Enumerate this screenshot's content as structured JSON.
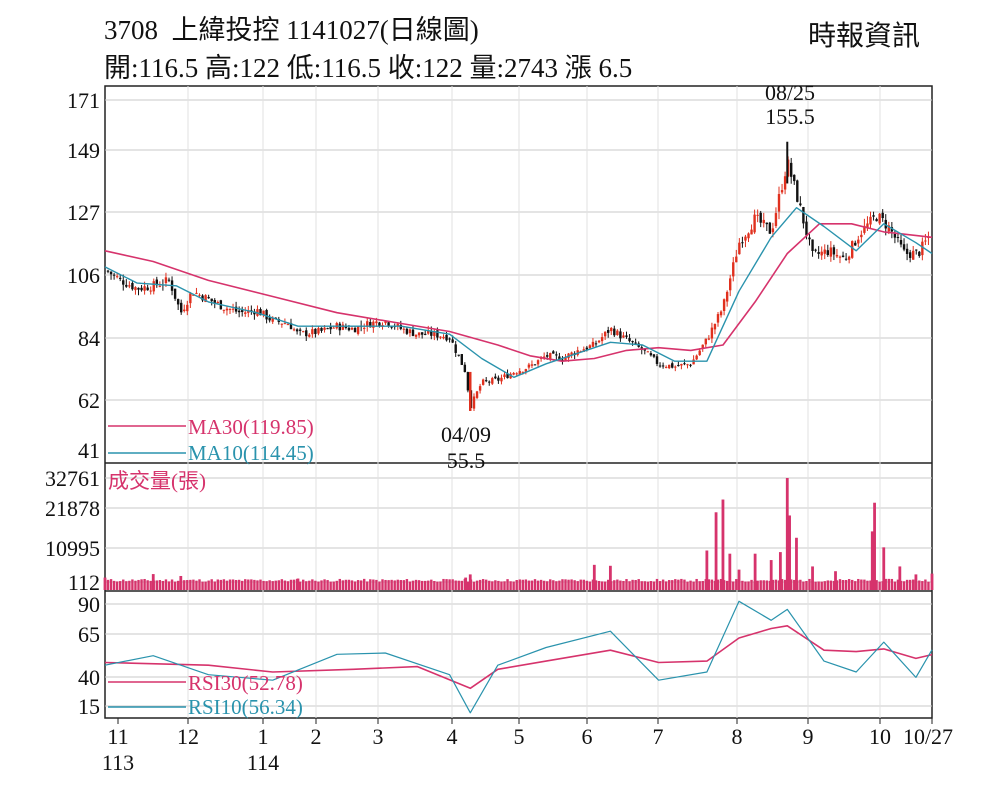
{
  "header": {
    "symbol": "3708",
    "name": "上緯投控",
    "date_title": "1141027(日線圖)",
    "source": "時報資訊",
    "quote": "開:116.5 高:122 低:116.5 收:122 量:2743 漲 6.5"
  },
  "colors": {
    "ma30": "#d6336c",
    "ma10": "#2a93ad",
    "up_candle": "#e0301e",
    "down_candle": "#111111",
    "volume": "#d6336c",
    "rsi30": "#d6336c",
    "rsi10": "#2a93ad",
    "grid": "#c8c8c8"
  },
  "chart_data": [
    {
      "type": "candlestick",
      "panel": "price",
      "ylim": [
        41,
        171
      ],
      "y_ticks": [
        "171",
        "149",
        "127",
        "106",
        "84",
        "62",
        "41"
      ],
      "x_ticks": [
        {
          "label": "11",
          "sub": "113"
        },
        {
          "label": "12"
        },
        {
          "label": "1",
          "sub": "114"
        },
        {
          "label": "2"
        },
        {
          "label": "3"
        },
        {
          "label": "4"
        },
        {
          "label": "5"
        },
        {
          "label": "6"
        },
        {
          "label": "7"
        },
        {
          "label": "8"
        },
        {
          "label": "9"
        },
        {
          "label": "10"
        },
        {
          "label": "10/27"
        }
      ],
      "legend": [
        {
          "name": "MA30(119.85)",
          "color": "#d6336c"
        },
        {
          "name": "MA10(114.45)",
          "color": "#2a93ad"
        }
      ],
      "annotations": [
        {
          "date": "08/25",
          "value": "155.5",
          "kind": "high"
        },
        {
          "date": "04/09",
          "value": "55.5",
          "kind": "low"
        }
      ],
      "close_path": [
        [
          "2024-11-01",
          108
        ],
        [
          "2024-11-08",
          104
        ],
        [
          "2024-11-15",
          101
        ],
        [
          "2024-11-22",
          102
        ],
        [
          "2024-11-29",
          104
        ],
        [
          "2024-12-04",
          92
        ],
        [
          "2024-12-09",
          100
        ],
        [
          "2024-12-16",
          97
        ],
        [
          "2024-12-23",
          94
        ],
        [
          "2024-12-30",
          92
        ],
        [
          "2025-01-06",
          93
        ],
        [
          "2025-01-13",
          89
        ],
        [
          "2025-01-20",
          88
        ],
        [
          "2025-01-24",
          84
        ],
        [
          "2025-02-03",
          85
        ],
        [
          "2025-02-10",
          87
        ],
        [
          "2025-02-17",
          86
        ],
        [
          "2025-02-24",
          88
        ],
        [
          "2025-03-03",
          89
        ],
        [
          "2025-03-10",
          86
        ],
        [
          "2025-03-17",
          84
        ],
        [
          "2025-03-24",
          84
        ],
        [
          "2025-03-31",
          83
        ],
        [
          "2025-04-07",
          70
        ],
        [
          "2025-04-09",
          57
        ],
        [
          "2025-04-14",
          66
        ],
        [
          "2025-04-21",
          67
        ],
        [
          "2025-04-28",
          70
        ],
        [
          "2025-05-05",
          72
        ],
        [
          "2025-05-12",
          76
        ],
        [
          "2025-05-19",
          75
        ],
        [
          "2025-05-26",
          78
        ],
        [
          "2025-06-02",
          80
        ],
        [
          "2025-06-09",
          86
        ],
        [
          "2025-06-16",
          82
        ],
        [
          "2025-06-23",
          78
        ],
        [
          "2025-06-30",
          73
        ],
        [
          "2025-07-07",
          72
        ],
        [
          "2025-07-14",
          73
        ],
        [
          "2025-07-21",
          82
        ],
        [
          "2025-07-28",
          94
        ],
        [
          "2025-08-04",
          118
        ],
        [
          "2025-08-11",
          127
        ],
        [
          "2025-08-18",
          122
        ],
        [
          "2025-08-25",
          148
        ],
        [
          "2025-08-29",
          136
        ],
        [
          "2025-09-05",
          113
        ],
        [
          "2025-09-12",
          115
        ],
        [
          "2025-09-19",
          112
        ],
        [
          "2025-09-26",
          122
        ],
        [
          "2025-10-03",
          128
        ],
        [
          "2025-10-08",
          124
        ],
        [
          "2025-10-15",
          114
        ],
        [
          "2025-10-21",
          114
        ],
        [
          "2025-10-27",
          122
        ]
      ],
      "ma30_path": [
        [
          "2024-11-01",
          115
        ],
        [
          "2024-11-22",
          111
        ],
        [
          "2024-12-16",
          104
        ],
        [
          "2025-01-13",
          98
        ],
        [
          "2025-02-10",
          92
        ],
        [
          "2025-03-10",
          88
        ],
        [
          "2025-03-31",
          85
        ],
        [
          "2025-04-21",
          80
        ],
        [
          "2025-05-05",
          76
        ],
        [
          "2025-05-19",
          74
        ],
        [
          "2025-06-02",
          75
        ],
        [
          "2025-06-16",
          78
        ],
        [
          "2025-06-30",
          79
        ],
        [
          "2025-07-14",
          78
        ],
        [
          "2025-07-28",
          80
        ],
        [
          "2025-08-11",
          96
        ],
        [
          "2025-08-25",
          114
        ],
        [
          "2025-09-08",
          125
        ],
        [
          "2025-09-22",
          125
        ],
        [
          "2025-10-06",
          122
        ],
        [
          "2025-10-27",
          120
        ]
      ],
      "ma10_path": [
        [
          "2024-11-01",
          109
        ],
        [
          "2024-11-15",
          103
        ],
        [
          "2024-12-02",
          102
        ],
        [
          "2024-12-16",
          96
        ],
        [
          "2025-01-06",
          92
        ],
        [
          "2025-01-24",
          87
        ],
        [
          "2025-02-17",
          87
        ],
        [
          "2025-03-10",
          87
        ],
        [
          "2025-03-31",
          84
        ],
        [
          "2025-04-14",
          75
        ],
        [
          "2025-04-28",
          68
        ],
        [
          "2025-05-12",
          73
        ],
        [
          "2025-05-26",
          77
        ],
        [
          "2025-06-09",
          81
        ],
        [
          "2025-06-23",
          80
        ],
        [
          "2025-07-07",
          74
        ],
        [
          "2025-07-21",
          74
        ],
        [
          "2025-08-04",
          100
        ],
        [
          "2025-08-18",
          120
        ],
        [
          "2025-08-29",
          131
        ],
        [
          "2025-09-10",
          124
        ],
        [
          "2025-09-24",
          115
        ],
        [
          "2025-10-06",
          125
        ],
        [
          "2025-10-20",
          118
        ],
        [
          "2025-10-27",
          114
        ]
      ]
    },
    {
      "type": "bar",
      "panel": "volume",
      "title": "成交量(張)",
      "ylim": [
        0,
        32761
      ],
      "y_ticks": [
        "32761",
        "21878",
        "10995",
        "112"
      ],
      "x": [
        "2024-11-01",
        "2024-11-22",
        "2024-12-04",
        "2025-01-24",
        "2025-04-07",
        "2025-04-09",
        "2025-06-02",
        "2025-06-09",
        "2025-07-21",
        "2025-07-25",
        "2025-07-28",
        "2025-07-31",
        "2025-08-04",
        "2025-08-11",
        "2025-08-18",
        "2025-08-22",
        "2025-08-25",
        "2025-08-26",
        "2025-08-29",
        "2025-09-05",
        "2025-09-15",
        "2025-10-01",
        "2025-10-02",
        "2025-10-06",
        "2025-10-13",
        "2025-10-20",
        "2025-10-27"
      ],
      "values": [
        1500,
        2600,
        2000,
        1200,
        1500,
        2500,
        5500,
        5200,
        10000,
        22000,
        26000,
        9000,
        4000,
        9000,
        7000,
        9500,
        32761,
        21000,
        14000,
        5000,
        3500,
        16000,
        25000,
        11000,
        5000,
        2500,
        2743
      ]
    },
    {
      "type": "line",
      "panel": "rsi",
      "ylim": [
        10,
        95
      ],
      "y_ticks": [
        "90",
        "65",
        "40",
        "15"
      ],
      "series": [
        {
          "name": "RSI30(52.78)",
          "color": "#d6336c",
          "points": [
            [
              "2024-11-01",
              47
            ],
            [
              "2024-12-16",
              45
            ],
            [
              "2025-01-13",
              40
            ],
            [
              "2025-02-17",
              42
            ],
            [
              "2025-03-17",
              44
            ],
            [
              "2025-04-09",
              28
            ],
            [
              "2025-04-21",
              42
            ],
            [
              "2025-05-12",
              48
            ],
            [
              "2025-06-09",
              56
            ],
            [
              "2025-06-30",
              47
            ],
            [
              "2025-07-21",
              48
            ],
            [
              "2025-08-04",
              65
            ],
            [
              "2025-08-18",
              72
            ],
            [
              "2025-08-25",
              74
            ],
            [
              "2025-09-10",
              56
            ],
            [
              "2025-09-24",
              55
            ],
            [
              "2025-10-06",
              57
            ],
            [
              "2025-10-20",
              50
            ],
            [
              "2025-10-27",
              52.78
            ]
          ]
        },
        {
          "name": "RSI10(56.34)",
          "color": "#2a93ad",
          "points": [
            [
              "2024-11-01",
              45
            ],
            [
              "2024-11-22",
              52
            ],
            [
              "2024-12-16",
              38
            ],
            [
              "2025-01-13",
              34
            ],
            [
              "2025-02-10",
              53
            ],
            [
              "2025-03-03",
              54
            ],
            [
              "2025-03-31",
              38
            ],
            [
              "2025-04-09",
              10
            ],
            [
              "2025-04-21",
              45
            ],
            [
              "2025-05-12",
              58
            ],
            [
              "2025-06-09",
              70
            ],
            [
              "2025-06-30",
              34
            ],
            [
              "2025-07-21",
              40
            ],
            [
              "2025-08-04",
              92
            ],
            [
              "2025-08-18",
              78
            ],
            [
              "2025-08-25",
              86
            ],
            [
              "2025-09-10",
              48
            ],
            [
              "2025-09-24",
              40
            ],
            [
              "2025-10-06",
              62
            ],
            [
              "2025-10-20",
              36
            ],
            [
              "2025-10-27",
              56.34
            ]
          ]
        }
      ]
    }
  ]
}
